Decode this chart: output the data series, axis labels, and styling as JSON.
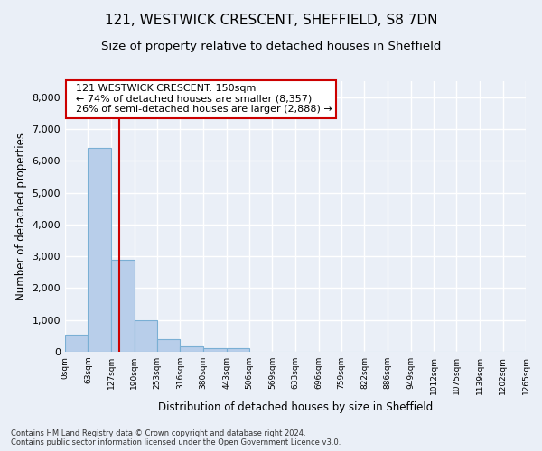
{
  "title": "121, WESTWICK CRESCENT, SHEFFIELD, S8 7DN",
  "subtitle": "Size of property relative to detached houses in Sheffield",
  "xlabel": "Distribution of detached houses by size in Sheffield",
  "ylabel": "Number of detached properties",
  "footer_line1": "Contains HM Land Registry data © Crown copyright and database right 2024.",
  "footer_line2": "Contains public sector information licensed under the Open Government Licence v3.0.",
  "bar_edges": [
    0,
    63,
    127,
    190,
    253,
    316,
    380,
    443,
    506,
    569,
    633,
    696,
    759,
    822,
    886,
    949,
    1012,
    1075,
    1139,
    1202,
    1265
  ],
  "bar_heights": [
    550,
    6400,
    2900,
    1000,
    400,
    175,
    125,
    100,
    0,
    0,
    0,
    0,
    0,
    0,
    0,
    0,
    0,
    0,
    0,
    0
  ],
  "bar_color": "#b8ceea",
  "bar_edge_color": "#7aafd4",
  "red_line_x": 150,
  "annotation_line1": "  121 WESTWICK CRESCENT: 150sqm",
  "annotation_line2": "  ← 74% of detached houses are smaller (8,357)",
  "annotation_line3": "  26% of semi-detached houses are larger (2,888) →",
  "annotation_box_color": "#ffffff",
  "annotation_box_edge_color": "#cc0000",
  "red_line_color": "#cc0000",
  "ylim": [
    0,
    8500
  ],
  "yticks": [
    0,
    1000,
    2000,
    3000,
    4000,
    5000,
    6000,
    7000,
    8000
  ],
  "background_color": "#eaeff7",
  "plot_bg_color": "#eaeff7",
  "grid_color": "#ffffff",
  "title_fontsize": 11,
  "subtitle_fontsize": 9.5,
  "xlabel_fontsize": 8.5,
  "ylabel_fontsize": 8.5,
  "ytick_fontsize": 8,
  "xtick_fontsize": 6.5,
  "footer_fontsize": 6,
  "annotation_fontsize": 8
}
